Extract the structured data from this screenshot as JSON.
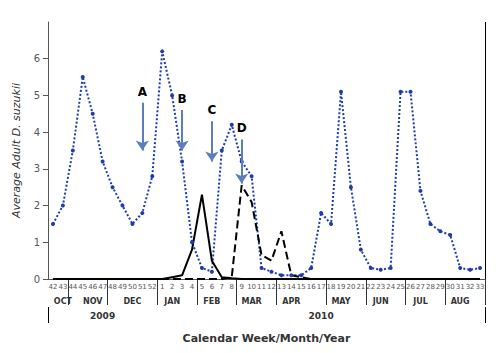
{
  "chart_data": {
    "type": "line",
    "xlabel": "Calendar Week/Month/Year",
    "ylabel": "Average Adult D. suzukii",
    "categories": [
      "42",
      "43",
      "44",
      "45",
      "46",
      "47",
      "48",
      "49",
      "50",
      "51",
      "52",
      "1",
      "2",
      "3",
      "4",
      "5",
      "6",
      "7",
      "8",
      "9",
      "10",
      "11",
      "12",
      "13",
      "14",
      "15",
      "16",
      "17",
      "18",
      "19",
      "20",
      "21",
      "22",
      "23",
      "24",
      "25",
      "26",
      "27",
      "28",
      "29",
      "30",
      "31",
      "32",
      "33"
    ],
    "series": [
      {
        "color": "#1f3daa",
        "line_style": "dotted",
        "marker": "circle",
        "values": [
          1.5,
          2.0,
          3.5,
          5.5,
          4.5,
          3.2,
          2.5,
          2.0,
          1.5,
          1.8,
          2.8,
          6.2,
          5.0,
          3.2,
          1.0,
          0.3,
          0.2,
          3.5,
          4.2,
          3.2,
          2.8,
          0.3,
          0.2,
          0.1,
          0.1,
          0.1,
          0.3,
          1.8,
          1.5,
          5.1,
          2.5,
          0.8,
          0.3,
          0.25,
          0.3,
          5.1,
          5.1,
          2.4,
          1.5,
          1.3,
          1.2,
          0.3,
          0.25,
          0.3
        ]
      },
      {
        "color": "#000000",
        "line_style": "solid",
        "marker": "none",
        "values": [
          0,
          0,
          0,
          0,
          0,
          0,
          0,
          0,
          0,
          0,
          0,
          0,
          0.05,
          0.1,
          0.8,
          2.3,
          0.5,
          0.05,
          0.02,
          0.0,
          0.0,
          0.0,
          0.0,
          0.0,
          0.0,
          0.0,
          0.0,
          0.0,
          0.0,
          0.0,
          0.0,
          0.0,
          0.0,
          0.0,
          0.0,
          0.0,
          0.0,
          0.0,
          0.0,
          0.0,
          0.0,
          0.0,
          0.0,
          0.0
        ]
      },
      {
        "color": "#000000",
        "line_style": "dashed",
        "marker": "none",
        "values": [
          0,
          0,
          0,
          0,
          0,
          0,
          0,
          0,
          0,
          0,
          0,
          0,
          0,
          0,
          0,
          0,
          0,
          0,
          0.05,
          2.55,
          2.1,
          0.65,
          0.5,
          1.3,
          0.1,
          0.05,
          0.0,
          0.0,
          0.0,
          0.0,
          0.0,
          0.0,
          0.0,
          0.0,
          0.0,
          0.0,
          0.0,
          0.0,
          0.0,
          0.0,
          0.0,
          0.0,
          0.0,
          0.0
        ]
      }
    ],
    "ylim": [
      0,
      7
    ],
    "yticks": [
      0,
      1,
      2,
      3,
      4,
      5,
      6
    ],
    "grid": false,
    "month_labels": [
      {
        "label": "OCT",
        "category": "43"
      },
      {
        "label": "NOV",
        "category": "46"
      },
      {
        "label": "DEC",
        "category": "50"
      },
      {
        "label": "JAN",
        "category": "2"
      },
      {
        "label": "FEB",
        "category": "6"
      },
      {
        "label": "MAR",
        "category": "10"
      },
      {
        "label": "APR",
        "category": "14"
      },
      {
        "label": "MAY",
        "category": "19"
      },
      {
        "label": "JUN",
        "category": "23"
      },
      {
        "label": "JUL",
        "category": "27"
      },
      {
        "label": "AUG",
        "category": "31"
      }
    ],
    "month_boundaries": [
      "44",
      "48",
      "1",
      "5",
      "9",
      "13",
      "18",
      "22",
      "26",
      "30"
    ],
    "year_labels": [
      {
        "label": "2009",
        "from": "42",
        "to": "52"
      },
      {
        "label": "2010",
        "from": "1",
        "to": "33"
      }
    ],
    "year_divider": "52",
    "annotations": [
      {
        "text": "A",
        "x": "51",
        "y_top": 4.8,
        "y_bottom": 3.5,
        "color": "#5b7fbe"
      },
      {
        "text": "B",
        "x": "3",
        "y_top": 4.6,
        "y_bottom": 3.5,
        "color": "#5b7fbe"
      },
      {
        "text": "C",
        "x": "6",
        "y_top": 4.3,
        "y_bottom": 3.2,
        "color": "#5b7fbe"
      },
      {
        "text": "D",
        "x": "9",
        "y_top": 3.8,
        "y_bottom": 2.6,
        "color": "#5b7fbe"
      }
    ]
  }
}
